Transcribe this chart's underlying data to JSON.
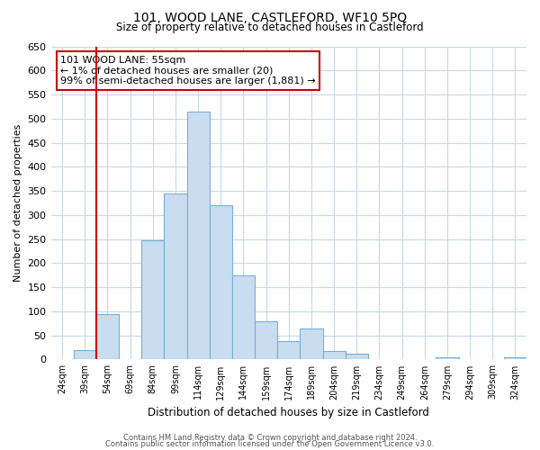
{
  "title": "101, WOOD LANE, CASTLEFORD, WF10 5PQ",
  "subtitle": "Size of property relative to detached houses in Castleford",
  "xlabel": "Distribution of detached houses by size in Castleford",
  "ylabel": "Number of detached properties",
  "bar_color": "#c8ddef",
  "bar_edge_color": "#7aafd4",
  "background_color": "#ffffff",
  "grid_color": "#c8d8e8",
  "bin_labels": [
    "24sqm",
    "39sqm",
    "54sqm",
    "69sqm",
    "84sqm",
    "99sqm",
    "114sqm",
    "129sqm",
    "144sqm",
    "159sqm",
    "174sqm",
    "189sqm",
    "204sqm",
    "219sqm",
    "234sqm",
    "249sqm",
    "264sqm",
    "279sqm",
    "294sqm",
    "309sqm",
    "324sqm"
  ],
  "bin_edges": [
    24,
    39,
    54,
    69,
    84,
    99,
    114,
    129,
    144,
    159,
    174,
    189,
    204,
    219,
    234,
    249,
    264,
    279,
    294,
    309,
    324
  ],
  "bar_heights": [
    0,
    20,
    95,
    0,
    248,
    345,
    515,
    320,
    174,
    80,
    38,
    65,
    18,
    12,
    0,
    0,
    0,
    5,
    0,
    0,
    5
  ],
  "ylim": [
    0,
    650
  ],
  "yticks": [
    0,
    50,
    100,
    150,
    200,
    250,
    300,
    350,
    400,
    450,
    500,
    550,
    600,
    650
  ],
  "property_line_x": 54,
  "property_line_color": "#cc0000",
  "annotation_title": "101 WOOD LANE: 55sqm",
  "annotation_line1": "← 1% of detached houses are smaller (20)",
  "annotation_line2": "99% of semi-detached houses are larger (1,881) →",
  "annotation_box_color": "#ffffff",
  "annotation_box_edge_color": "#cc0000",
  "footer1": "Contains HM Land Registry data © Crown copyright and database right 2024.",
  "footer2": "Contains public sector information licensed under the Open Government Licence v3.0."
}
